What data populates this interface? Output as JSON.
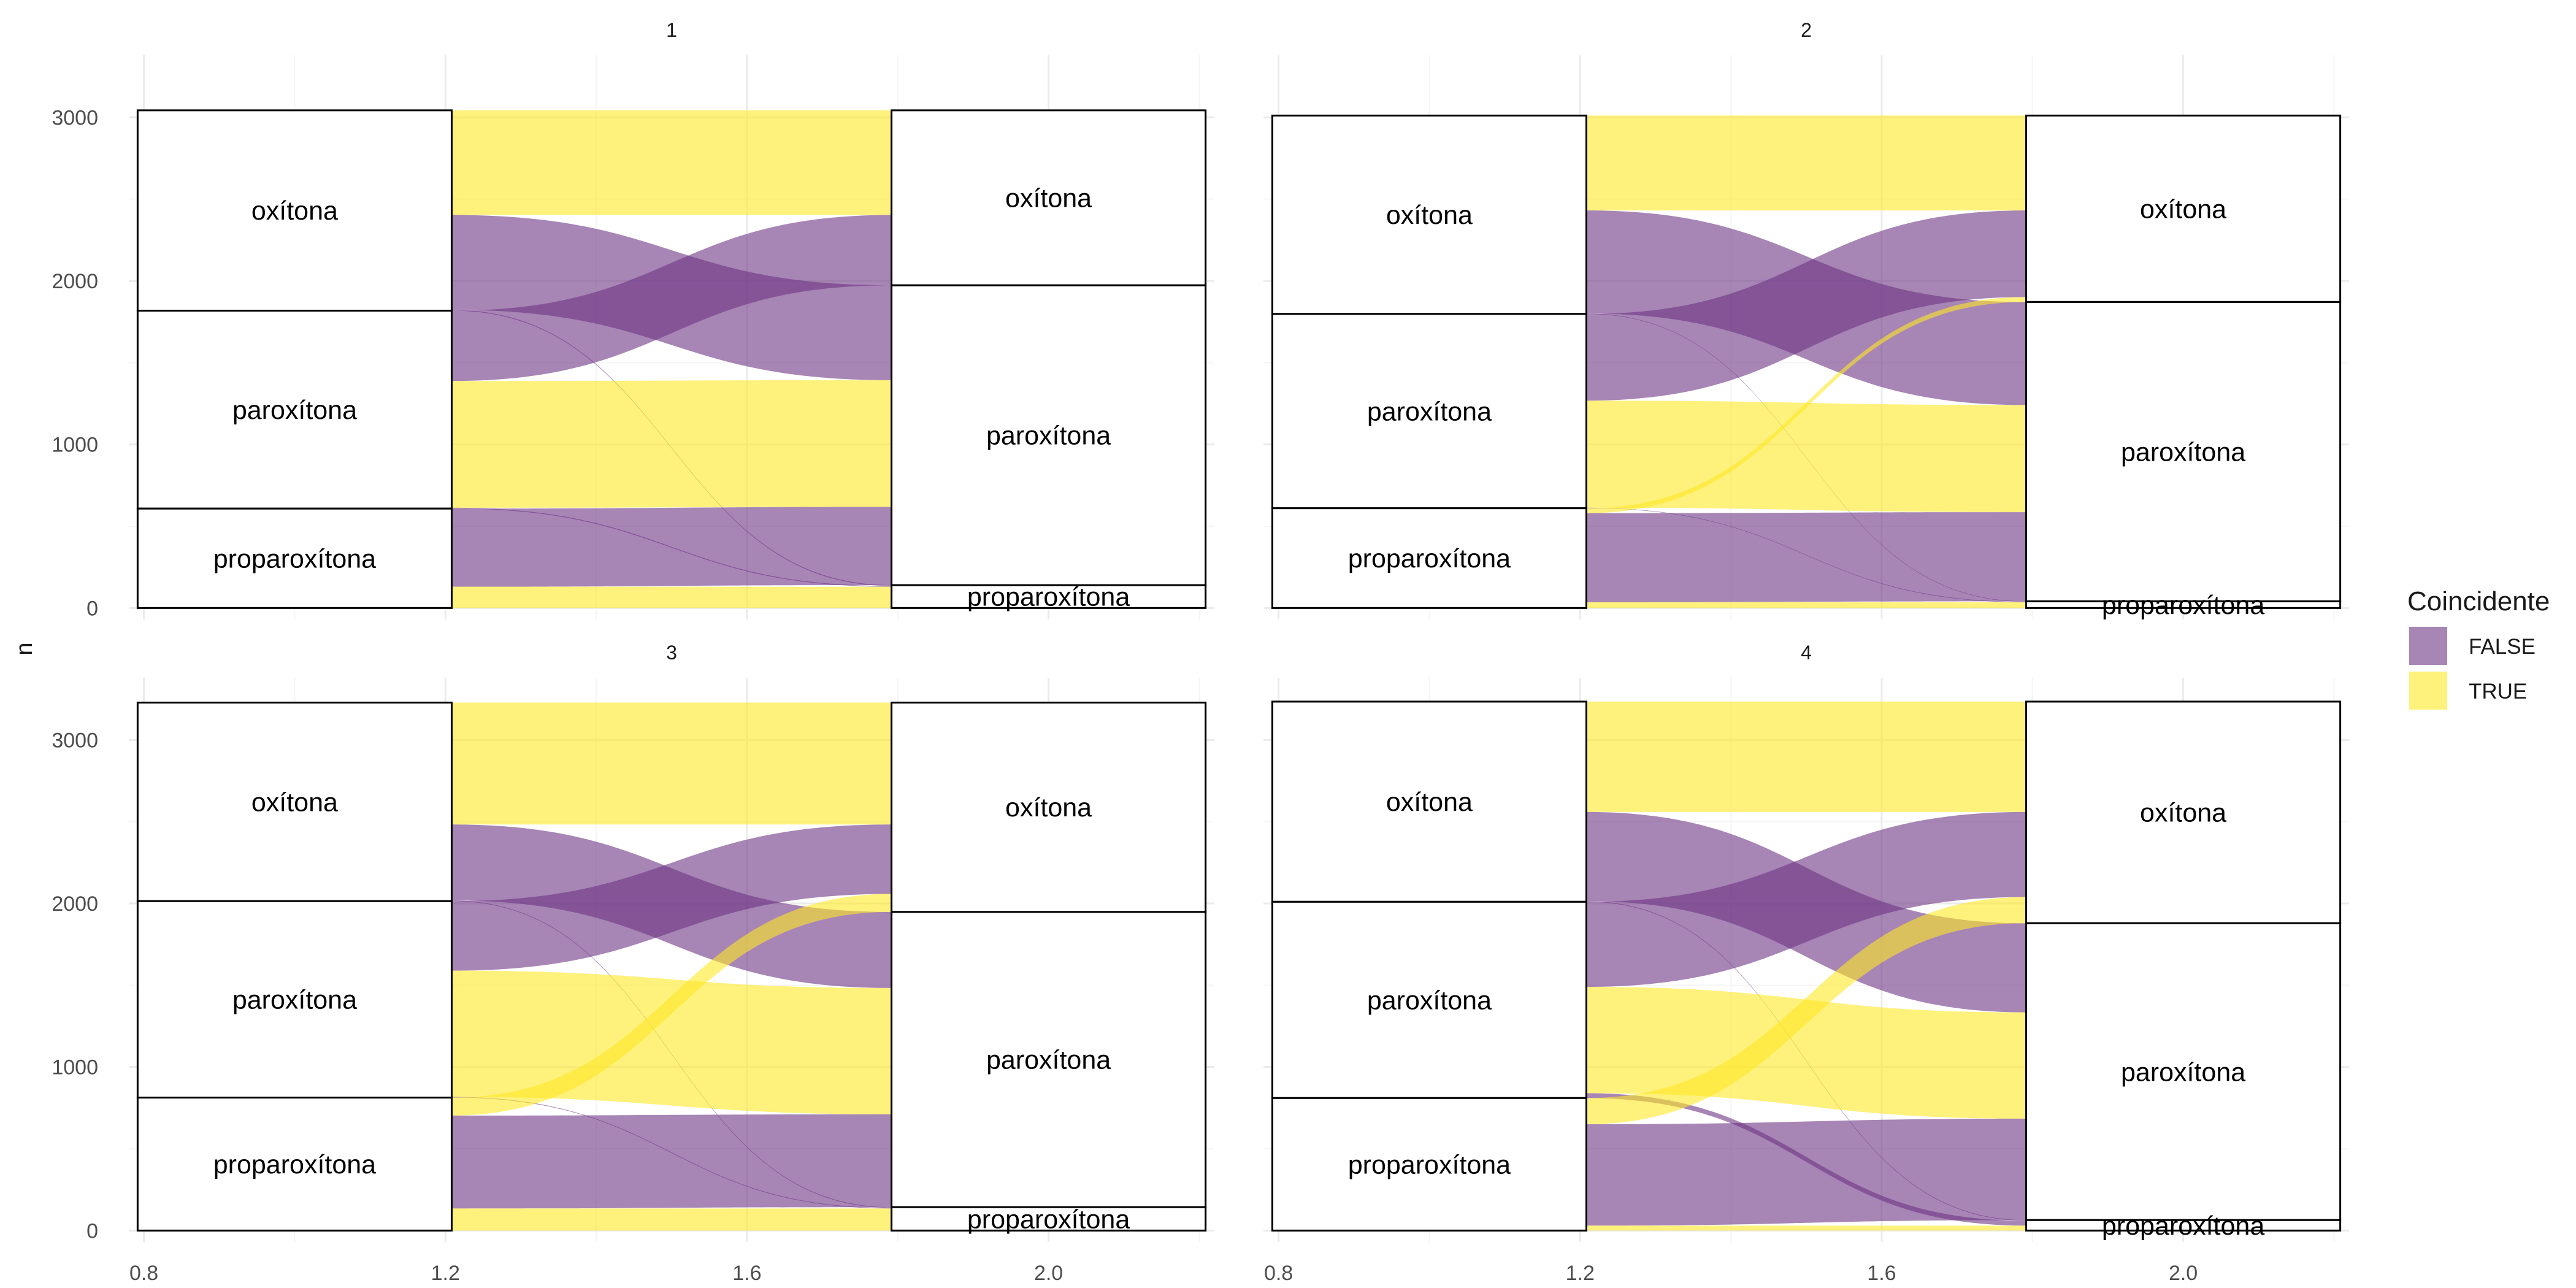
{
  "chart_data": {
    "type": "alluvial",
    "ylabel": "n",
    "xlabel": "",
    "x_ticks": [
      "0.8",
      "1.2",
      "1.6",
      "2.0"
    ],
    "x_tick_values": [
      0.8,
      1.2,
      1.6,
      2.0
    ],
    "y_ticks": [
      "0",
      "1000",
      "2000",
      "3000"
    ],
    "y_tick_values": [
      0,
      1000,
      2000,
      3000
    ],
    "xlim": [
      0.78,
      2.22
    ],
    "ylim": [
      -70,
      3380
    ],
    "axis_positions": [
      1,
      2
    ],
    "category_order": [
      "oxítona",
      "paroxítona",
      "proparoxítona"
    ],
    "legend": {
      "title": "Coincidente",
      "position": "right",
      "items": [
        {
          "key": "FALSE",
          "label": "FALSE"
        },
        {
          "key": "TRUE",
          "label": "TRUE"
        }
      ]
    },
    "colors": {
      "FALSE": "#6C3483",
      "TRUE": "#FDE725",
      "flow_opacity": "0.6",
      "box_stroke": "#000000",
      "grid_major": "#ebebeb",
      "grid_minor": "#f5f5f5"
    },
    "panels": [
      {
        "title": "1",
        "flows": [
          {
            "from": "oxítona",
            "to": "oxítona",
            "n": 640,
            "coincidente": "TRUE"
          },
          {
            "from": "oxítona",
            "to": "paroxítona",
            "n": 580,
            "coincidente": "FALSE"
          },
          {
            "from": "oxítona",
            "to": "proparoxítona",
            "n": 5,
            "coincidente": "FALSE"
          },
          {
            "from": "paroxítona",
            "to": "oxítona",
            "n": 430,
            "coincidente": "FALSE"
          },
          {
            "from": "paroxítona",
            "to": "paroxítona",
            "n": 775,
            "coincidente": "TRUE"
          },
          {
            "from": "paroxítona",
            "to": "proparoxítona",
            "n": 5,
            "coincidente": "FALSE"
          },
          {
            "from": "proparoxítona",
            "to": "oxítona",
            "n": 0,
            "coincidente": "FALSE"
          },
          {
            "from": "proparoxítona",
            "to": "paroxítona",
            "n": 478,
            "coincidente": "FALSE"
          },
          {
            "from": "proparoxítona",
            "to": "proparoxítona",
            "n": 130,
            "coincidente": "TRUE"
          }
        ]
      },
      {
        "title": "2",
        "flows": [
          {
            "from": "oxítona",
            "to": "oxítona",
            "n": 580,
            "coincidente": "TRUE"
          },
          {
            "from": "oxítona",
            "to": "paroxítona",
            "n": 630,
            "coincidente": "FALSE"
          },
          {
            "from": "oxítona",
            "to": "proparoxítona",
            "n": 3,
            "coincidente": "FALSE"
          },
          {
            "from": "paroxítona",
            "to": "oxítona",
            "n": 530,
            "coincidente": "FALSE"
          },
          {
            "from": "paroxítona",
            "to": "paroxítona",
            "n": 655,
            "coincidente": "TRUE"
          },
          {
            "from": "paroxítona",
            "to": "proparoxítona",
            "n": 3,
            "coincidente": "FALSE"
          },
          {
            "from": "proparoxítona",
            "to": "oxítona",
            "n": 30,
            "coincidente": "TRUE"
          },
          {
            "from": "proparoxítona",
            "to": "paroxítona",
            "n": 545,
            "coincidente": "FALSE"
          },
          {
            "from": "proparoxítona",
            "to": "proparoxítona",
            "n": 35,
            "coincidente": "TRUE"
          }
        ]
      },
      {
        "title": "3",
        "flows": [
          {
            "from": "oxítona",
            "to": "oxítona",
            "n": 745,
            "coincidente": "TRUE"
          },
          {
            "from": "oxítona",
            "to": "paroxítona",
            "n": 465,
            "coincidente": "FALSE"
          },
          {
            "from": "oxítona",
            "to": "proparoxítona",
            "n": 4,
            "coincidente": "FALSE"
          },
          {
            "from": "paroxítona",
            "to": "oxítona",
            "n": 425,
            "coincidente": "FALSE"
          },
          {
            "from": "paroxítona",
            "to": "paroxítona",
            "n": 772,
            "coincidente": "TRUE"
          },
          {
            "from": "paroxítona",
            "to": "proparoxítona",
            "n": 4,
            "coincidente": "FALSE"
          },
          {
            "from": "proparoxítona",
            "to": "oxítona",
            "n": 110,
            "coincidente": "TRUE"
          },
          {
            "from": "proparoxítona",
            "to": "paroxítona",
            "n": 568,
            "coincidente": "FALSE"
          },
          {
            "from": "proparoxítona",
            "to": "proparoxítona",
            "n": 135,
            "coincidente": "TRUE"
          }
        ]
      },
      {
        "title": "4",
        "flows": [
          {
            "from": "oxítona",
            "to": "oxítona",
            "n": 675,
            "coincidente": "TRUE"
          },
          {
            "from": "oxítona",
            "to": "paroxítona",
            "n": 545,
            "coincidente": "FALSE"
          },
          {
            "from": "oxítona",
            "to": "proparoxítona",
            "n": 4,
            "coincidente": "FALSE"
          },
          {
            "from": "paroxítona",
            "to": "oxítona",
            "n": 520,
            "coincidente": "FALSE"
          },
          {
            "from": "paroxítona",
            "to": "paroxítona",
            "n": 650,
            "coincidente": "TRUE"
          },
          {
            "from": "paroxítona",
            "to": "proparoxítona",
            "n": 30,
            "coincidente": "FALSE"
          },
          {
            "from": "proparoxítona",
            "to": "oxítona",
            "n": 160,
            "coincidente": "TRUE"
          },
          {
            "from": "proparoxítona",
            "to": "paroxítona",
            "n": 620,
            "coincidente": "FALSE"
          },
          {
            "from": "proparoxítona",
            "to": "proparoxítona",
            "n": 30,
            "coincidente": "TRUE"
          }
        ]
      }
    ]
  }
}
